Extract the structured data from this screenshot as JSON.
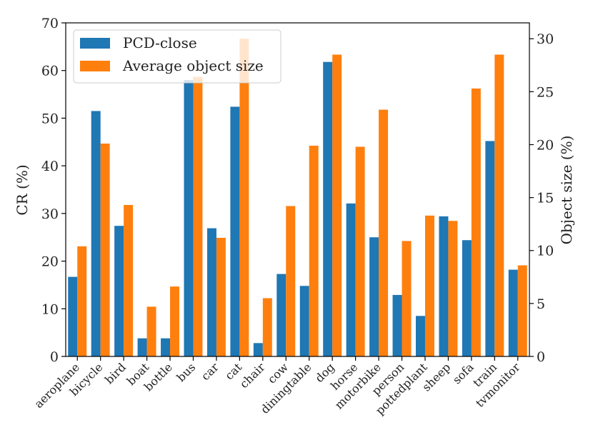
{
  "chart_data": {
    "type": "bar",
    "categories": [
      "aeroplane",
      "bicycle",
      "bird",
      "boat",
      "bottle",
      "bus",
      "car",
      "cat",
      "chair",
      "cow",
      "diningtable",
      "dog",
      "horse",
      "motorbike",
      "person",
      "pottedplant",
      "sheep",
      "sofa",
      "train",
      "tvmonitor"
    ],
    "series": [
      {
        "name": "PCD-close",
        "axis": "left",
        "color": "#1f77b4",
        "values": [
          16.7,
          51.5,
          27.4,
          3.8,
          3.8,
          58.0,
          26.9,
          52.4,
          2.8,
          17.3,
          14.8,
          61.8,
          32.1,
          25.0,
          12.9,
          8.5,
          29.4,
          24.4,
          45.2,
          18.2
        ]
      },
      {
        "name": "Average object size",
        "axis": "right",
        "color": "#ff7f0e",
        "values": [
          10.4,
          20.1,
          14.3,
          4.7,
          6.6,
          26.4,
          11.2,
          30.0,
          5.5,
          14.2,
          19.9,
          28.5,
          19.8,
          23.3,
          10.9,
          13.3,
          12.8,
          25.3,
          28.5,
          8.6
        ]
      }
    ],
    "ylabel_left": "CR (%)",
    "ylabel_right": "Object size (%)",
    "ylim_left": [
      0,
      70
    ],
    "ylim_right": [
      0,
      31.5
    ],
    "yticks_left": [
      "0",
      "10",
      "20",
      "30",
      "40",
      "50",
      "60",
      "70"
    ],
    "yticks_right": [
      "0",
      "5",
      "10",
      "15",
      "20",
      "25",
      "30"
    ],
    "legend_position": "top-left",
    "grid": false
  }
}
